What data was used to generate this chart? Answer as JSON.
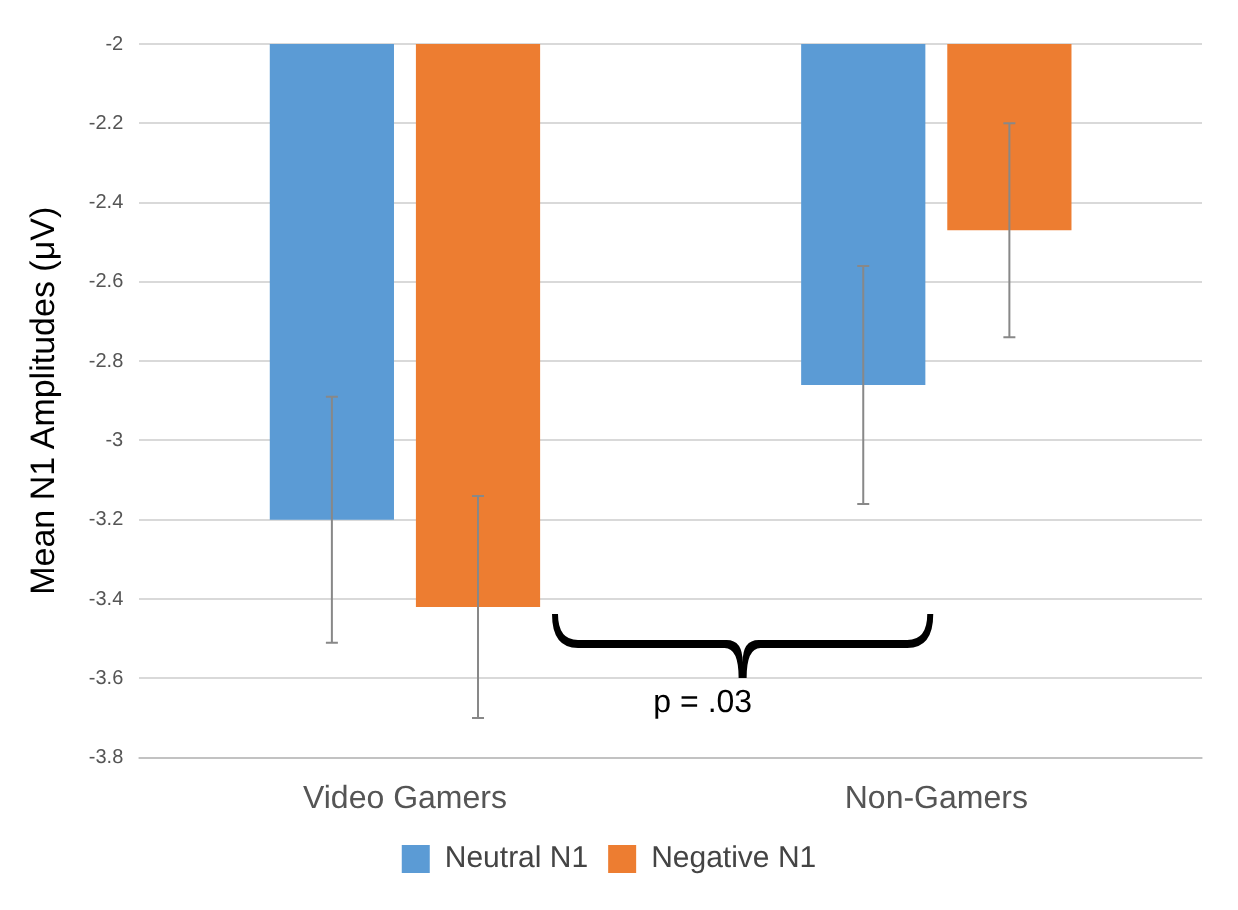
{
  "chart_data": {
    "type": "bar",
    "ylabel": "Mean N1 Amplitudes (μV)",
    "categories": [
      "Video Gamers",
      "Non-Gamers"
    ],
    "series": [
      {
        "name": "Neutral N1",
        "color": "#5b9bd5",
        "values": [
          -3.2,
          -2.86
        ],
        "errors": [
          0.31,
          0.3
        ]
      },
      {
        "name": "Negative N1",
        "color": "#ed7d31",
        "values": [
          -3.42,
          -2.47
        ],
        "errors": [
          0.28,
          0.27
        ]
      }
    ],
    "ylim": [
      -3.8,
      -2
    ],
    "yticks": [
      -3.8,
      -3.6,
      -3.4,
      -3.2,
      -3,
      -2.8,
      -2.6,
      -2.4,
      -2.2,
      -2
    ],
    "grid": "y",
    "legend": "bottom",
    "annotations": [
      "p = .03"
    ]
  }
}
